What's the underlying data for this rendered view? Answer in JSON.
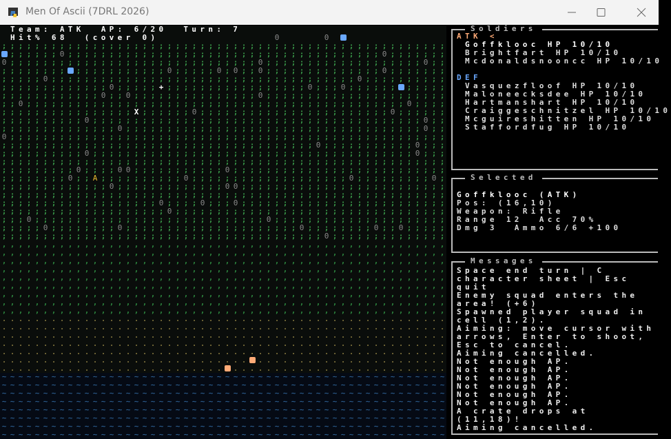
{
  "window": {
    "title": "Men Of Ascii (7DRL 2026)",
    "controls": [
      "minimize-icon",
      "maximize-icon",
      "close-icon"
    ]
  },
  "hud": {
    "line1": "Team: ATK  AP: 6/20  Turn: 7",
    "line2": "Hit% 68  (cover 0)"
  },
  "map": {
    "terrain": [
      {
        "glyph": ";",
        "color": "#3a9a4a"
      },
      {
        "glyph": ",",
        "color": "#2e8a40"
      },
      {
        "glyph": ".",
        "color": "#7a6e3a"
      },
      {
        "glyph": "~",
        "color": "#2a5a8a"
      }
    ],
    "stone_glyph": "0",
    "stone_color": "#8a8a8a",
    "cursor_glyph": "X",
    "crosshair_glyph": "+",
    "selected_glyph": "A",
    "colors": {
      "def_unit": "#6aa8ff",
      "atk_unit": "#ffaa77",
      "selected": "#e8b830"
    }
  },
  "soldiers": {
    "title": "Soldiers",
    "atk_label": "ATK <",
    "atk": [
      "Goffklooc HP 10/10",
      "Brightfart HP 10/10",
      "Mcdonaldsnooncc HP 10/10"
    ],
    "def_label": "DEF",
    "def": [
      "Vasquezfloof HP 10/10",
      "Maloneecksdee HP 10/10",
      "Hartmanshart HP 10/10",
      "Craiggeschnitzel HP 10/10",
      "Mcguireshitten HP 10/10",
      "Staffordfug HP 10/10"
    ],
    "atk_color": "#ffaa77",
    "def_color": "#6aa8ff"
  },
  "selected": {
    "title": "Selected",
    "name": "Goffklooc (ATK)",
    "pos": "Pos: (16,10)",
    "weapon": "Weapon: Rifle",
    "range": "Range 12  Acc 70%",
    "dmg": "Dmg 3  Ammo 6/6 +100"
  },
  "messages": {
    "title": "Messages",
    "lines": [
      "Space end turn | C",
      "character sheet | Esc",
      "quit",
      "Enemy squad enters the",
      "area! (+6)",
      "Spawned player squad in",
      "cell (1,2).",
      "Aiming: move cursor with",
      "arrows, Enter to shoot,",
      "Esc to cancel.",
      "Aiming cancelled.",
      "Not enough AP.",
      "Not enough AP.",
      "Not enough AP.",
      "Not enough AP.",
      "Not enough AP.",
      "Not enough AP.",
      "A crate drops at",
      "(11,18)!",
      "Aiming cancelled."
    ]
  }
}
